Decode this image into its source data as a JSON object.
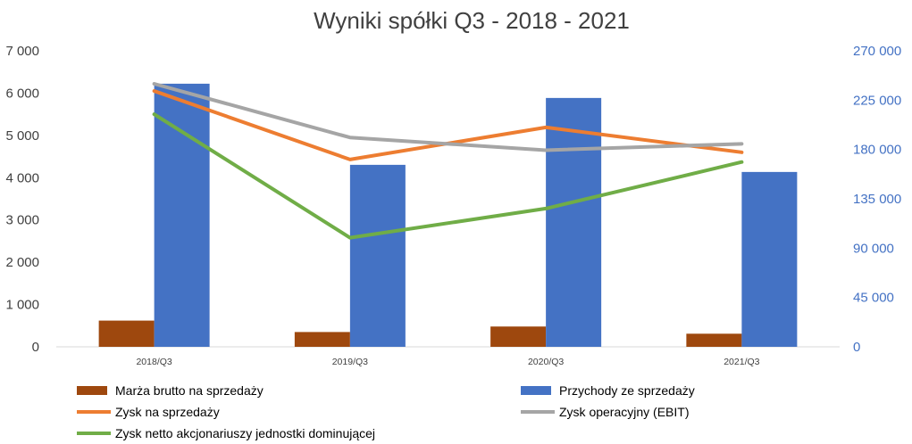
{
  "chart_data": {
    "type": "bar",
    "title": "Wyniki spółki Q3 - 2018 - 2021",
    "categories": [
      "2018/Q3",
      "2019/Q3",
      "2020/Q3",
      "2021/Q3"
    ],
    "left_axis": {
      "ylim": [
        0,
        7000
      ],
      "ticks": [
        "0",
        "1 000",
        "2 000",
        "3 000",
        "4 000",
        "5 000",
        "6 000",
        "7 000"
      ]
    },
    "right_axis": {
      "ylim": [
        0,
        270000
      ],
      "ticks": [
        "0",
        "45 000",
        "90 000",
        "135 000",
        "180 000",
        "225 000",
        "270 000"
      ]
    },
    "grid": false,
    "legend_position": "bottom",
    "series": [
      {
        "name": "Marża brutto na sprzedaży",
        "kind": "bar",
        "axis": "left",
        "color": "#9e480e",
        "values": [
          620,
          350,
          480,
          310
        ]
      },
      {
        "name": "Przychody ze sprzedaży",
        "kind": "bar",
        "axis": "right",
        "color": "#4472c4",
        "values": [
          240000,
          166000,
          227000,
          159500
        ]
      },
      {
        "name": "Zysk na sprzedaży",
        "kind": "line",
        "axis": "left",
        "color": "#ed7d31",
        "values": [
          6050,
          4430,
          5190,
          4600
        ]
      },
      {
        "name": "Zysk operacyjny (EBIT)",
        "kind": "line",
        "axis": "left",
        "color": "#a5a5a5",
        "values": [
          6220,
          4950,
          4650,
          4800
        ]
      },
      {
        "name": "Zysk netto akcjonariuszy jednostki dominującej",
        "kind": "line",
        "axis": "left",
        "color": "#70ad47",
        "values": [
          5500,
          2580,
          3270,
          4370
        ]
      }
    ]
  }
}
